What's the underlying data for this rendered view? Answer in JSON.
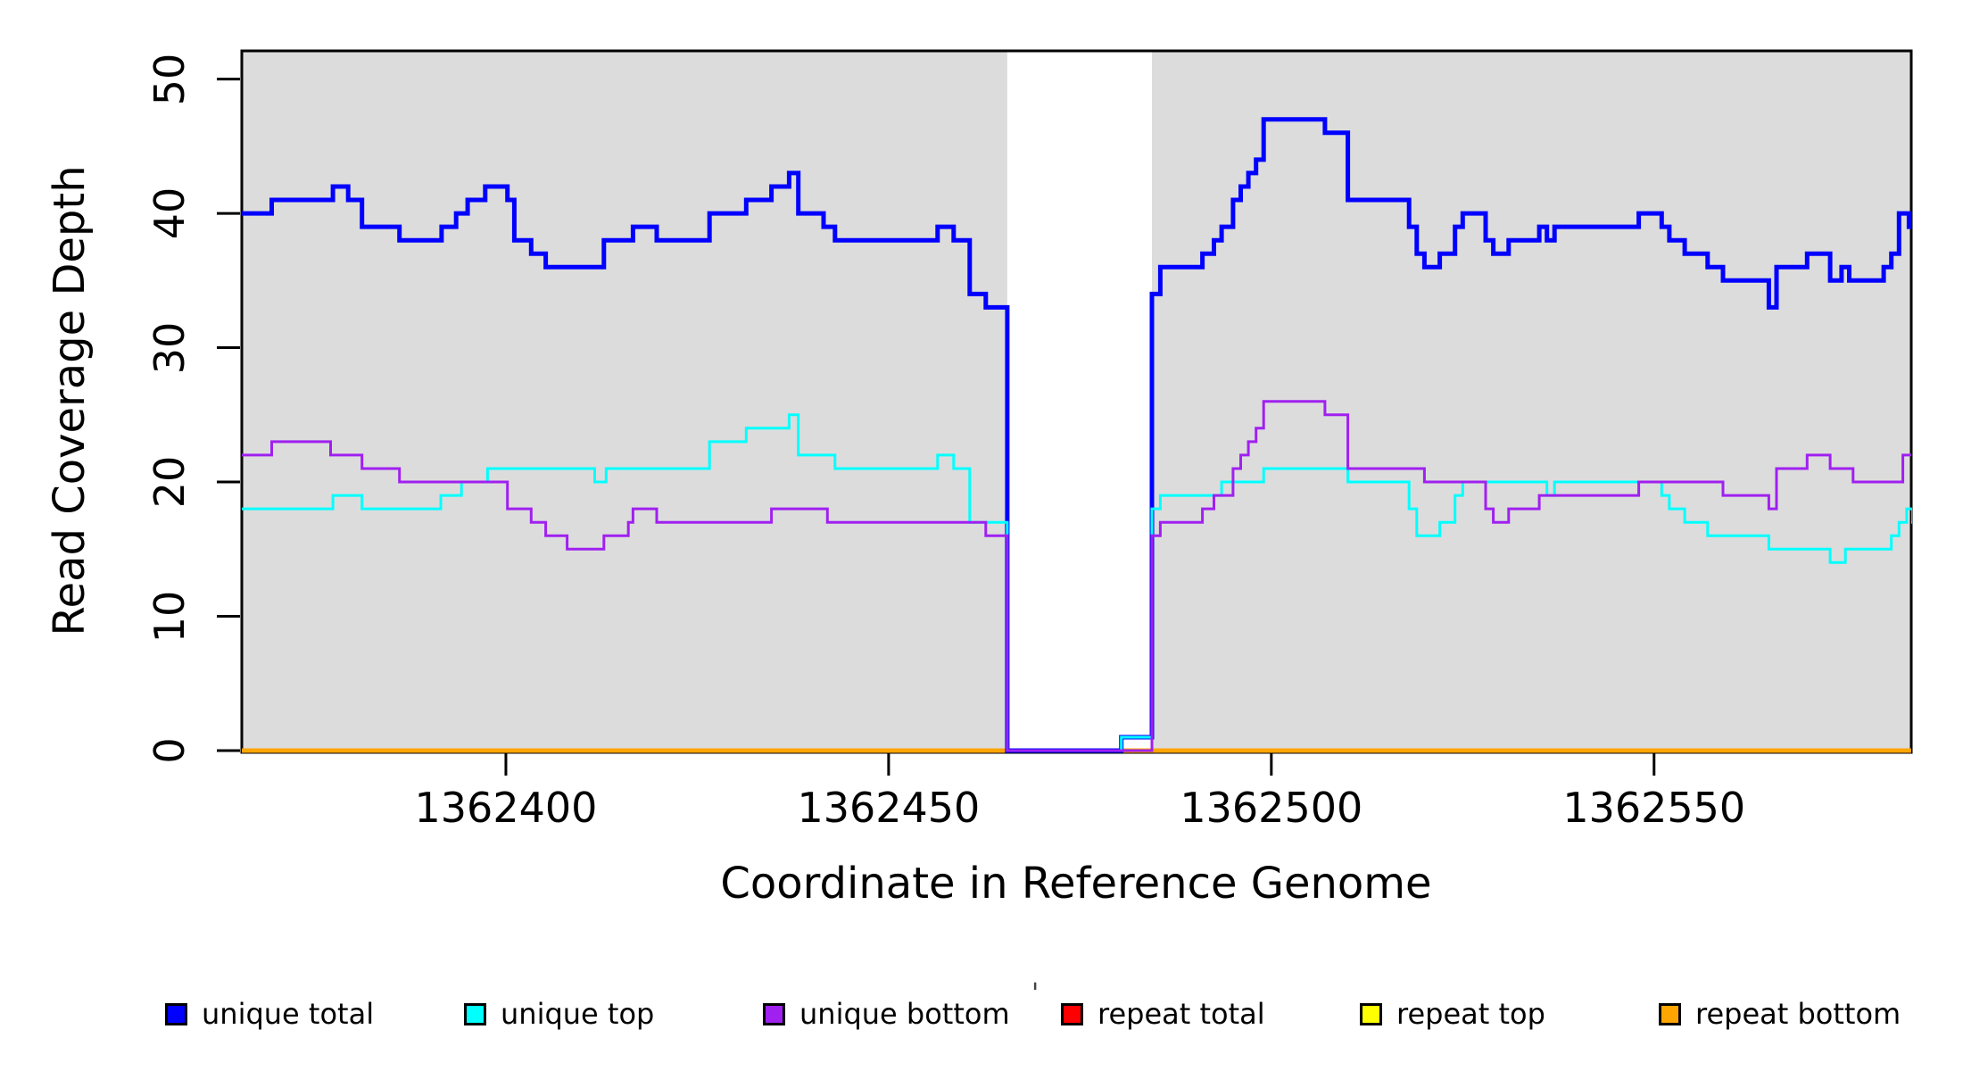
{
  "chart_data": {
    "type": "line",
    "subtype": "step-coverage-plot",
    "title": "",
    "xlabel": "Coordinate in Reference Genome",
    "ylabel": "Read Coverage Depth",
    "xlim": [
      1362365.5,
      1362583.6
    ],
    "ylim": [
      0,
      52.1
    ],
    "x_ticks": [
      1362400,
      1362450,
      1362500,
      1362550
    ],
    "x_tick_labels": [
      "1362400",
      "1362450",
      "1362500",
      "1362550"
    ],
    "y_ticks": [
      0,
      10,
      20,
      30,
      40,
      50
    ],
    "y_tick_labels": [
      "0",
      "10",
      "20",
      "30",
      "40",
      "50"
    ],
    "grid": false,
    "plot_background": "#ffffff",
    "shaded_regions": [
      {
        "x0": 1362365.5,
        "x1": 1362465.5,
        "color": "#dcdcdc"
      },
      {
        "x0": 1362484.4,
        "x1": 1362583.6,
        "color": "#dcdcdc"
      }
    ],
    "gap_region": {
      "x0": 1362465.5,
      "x1": 1362484.4,
      "note": "white band where coverage drops to 0"
    },
    "legend_position": "bottom",
    "legend": [
      {
        "label": "unique total",
        "color": "#0000ff"
      },
      {
        "label": "unique top",
        "color": "#00ffff"
      },
      {
        "label": "unique bottom",
        "color": "#a020f0"
      },
      {
        "label": "repeat total",
        "color": "#ff0000"
      },
      {
        "label": "repeat top",
        "color": "#ffff00"
      },
      {
        "label": "repeat bottom",
        "color": "#ffa500"
      }
    ],
    "series": [
      {
        "name": "repeat total",
        "color": "#ff0000",
        "width": 5,
        "points": [
          [
            1362366,
            0
          ]
        ]
      },
      {
        "name": "repeat top",
        "color": "#ffff00",
        "width": 5,
        "points": [
          [
            1362366,
            0
          ]
        ]
      },
      {
        "name": "repeat bottom",
        "color": "#ffa500",
        "width": 5,
        "points": [
          [
            1362366,
            0
          ]
        ]
      },
      {
        "name": "unique total",
        "color": "#0000ff",
        "width": 5,
        "points": [
          [
            1362366,
            40
          ],
          [
            1362369.4,
            41
          ],
          [
            1362377.4,
            42
          ],
          [
            1362379.4,
            41
          ],
          [
            1362381.2,
            39
          ],
          [
            1362386.1,
            38
          ],
          [
            1362391.6,
            39
          ],
          [
            1362393.5,
            40
          ],
          [
            1362395,
            41
          ],
          [
            1362397.3,
            42
          ],
          [
            1362400.2,
            41
          ],
          [
            1362401.1,
            38
          ],
          [
            1362403.3,
            37
          ],
          [
            1362405.2,
            36
          ],
          [
            1362412.8,
            38
          ],
          [
            1362416.6,
            39
          ],
          [
            1362419.7,
            38
          ],
          [
            1362426.6,
            40
          ],
          [
            1362431.4,
            41
          ],
          [
            1362434.7,
            42
          ],
          [
            1362437,
            43
          ],
          [
            1362438.2,
            40
          ],
          [
            1362441.5,
            39
          ],
          [
            1362443,
            38
          ],
          [
            1362456.4,
            39
          ],
          [
            1362458.5,
            38
          ],
          [
            1362460.6,
            34
          ],
          [
            1362462.7,
            33
          ],
          [
            1362465.5,
            0
          ],
          [
            1362480.4,
            1
          ],
          [
            1362484.4,
            34
          ],
          [
            1362485.5,
            36
          ],
          [
            1362491,
            37
          ],
          [
            1362492.5,
            38
          ],
          [
            1362493.5,
            39
          ],
          [
            1362495,
            41
          ],
          [
            1362496,
            42
          ],
          [
            1362497,
            43
          ],
          [
            1362498,
            44
          ],
          [
            1362499,
            47
          ],
          [
            1362507,
            46
          ],
          [
            1362510,
            41
          ],
          [
            1362518,
            39
          ],
          [
            1362519,
            37
          ],
          [
            1362520,
            36
          ],
          [
            1362522,
            37
          ],
          [
            1362524,
            39
          ],
          [
            1362525,
            40
          ],
          [
            1362528,
            38
          ],
          [
            1362529,
            37
          ],
          [
            1362531,
            38
          ],
          [
            1362535,
            39
          ],
          [
            1362536,
            38
          ],
          [
            1362537,
            39
          ],
          [
            1362548,
            40
          ],
          [
            1362551,
            39
          ],
          [
            1362552,
            38
          ],
          [
            1362554,
            37
          ],
          [
            1362557,
            36
          ],
          [
            1362559,
            35
          ],
          [
            1362565,
            33
          ],
          [
            1362566,
            36
          ],
          [
            1362570,
            37
          ],
          [
            1362573,
            35
          ],
          [
            1362574.5,
            36
          ],
          [
            1362575.5,
            35
          ],
          [
            1362580,
            36
          ],
          [
            1362581,
            37
          ],
          [
            1362582,
            40
          ],
          [
            1362583.3,
            39
          ]
        ]
      },
      {
        "name": "unique top",
        "color": "#00ffff",
        "width": 3,
        "points": [
          [
            1362366,
            18
          ],
          [
            1362377.4,
            19
          ],
          [
            1362381.2,
            18
          ],
          [
            1362391.5,
            19
          ],
          [
            1362394.2,
            20
          ],
          [
            1362397.6,
            21
          ],
          [
            1362411.6,
            20
          ],
          [
            1362413.1,
            21
          ],
          [
            1362426.6,
            23
          ],
          [
            1362431.4,
            24
          ],
          [
            1362437,
            25
          ],
          [
            1362438.2,
            22
          ],
          [
            1362443,
            21
          ],
          [
            1362456.4,
            22
          ],
          [
            1362458.5,
            21
          ],
          [
            1362460.6,
            17
          ],
          [
            1362465.5,
            0
          ],
          [
            1362480.4,
            1
          ],
          [
            1362484.4,
            18
          ],
          [
            1362485.5,
            19
          ],
          [
            1362493.5,
            20
          ],
          [
            1362499,
            21
          ],
          [
            1362510,
            20
          ],
          [
            1362518,
            18
          ],
          [
            1362519,
            16
          ],
          [
            1362522,
            17
          ],
          [
            1362524,
            19
          ],
          [
            1362525,
            20
          ],
          [
            1362536,
            19
          ],
          [
            1362537,
            20
          ],
          [
            1362551,
            19
          ],
          [
            1362552,
            18
          ],
          [
            1362554,
            17
          ],
          [
            1362557,
            16
          ],
          [
            1362565,
            15
          ],
          [
            1362573,
            14
          ],
          [
            1362575,
            15
          ],
          [
            1362581,
            16
          ],
          [
            1362582,
            17
          ],
          [
            1362583,
            18
          ],
          [
            1362583.8,
            17
          ]
        ]
      },
      {
        "name": "unique bottom",
        "color": "#a020f0",
        "width": 3,
        "points": [
          [
            1362366,
            22
          ],
          [
            1362369.4,
            23
          ],
          [
            1362377.1,
            22
          ],
          [
            1362381.2,
            21
          ],
          [
            1362386.1,
            20
          ],
          [
            1362400.2,
            18
          ],
          [
            1362403.3,
            17
          ],
          [
            1362405.2,
            16
          ],
          [
            1362408,
            15
          ],
          [
            1362412.8,
            16
          ],
          [
            1362416,
            17
          ],
          [
            1362416.6,
            18
          ],
          [
            1362419.7,
            17
          ],
          [
            1362434.7,
            18
          ],
          [
            1362442,
            17
          ],
          [
            1362462.7,
            16
          ],
          [
            1362465.5,
            0
          ],
          [
            1362484.4,
            16
          ],
          [
            1362485.5,
            17
          ],
          [
            1362491,
            18
          ],
          [
            1362492.5,
            19
          ],
          [
            1362495,
            21
          ],
          [
            1362496,
            22
          ],
          [
            1362497,
            23
          ],
          [
            1362498,
            24
          ],
          [
            1362499,
            26
          ],
          [
            1362507,
            25
          ],
          [
            1362510,
            21
          ],
          [
            1362520,
            20
          ],
          [
            1362528,
            18
          ],
          [
            1362529,
            17
          ],
          [
            1362531,
            18
          ],
          [
            1362535,
            19
          ],
          [
            1362548,
            20
          ],
          [
            1362559,
            19
          ],
          [
            1362565,
            18
          ],
          [
            1362566,
            21
          ],
          [
            1362570,
            22
          ],
          [
            1362573,
            21
          ],
          [
            1362576,
            20
          ],
          [
            1362582.5,
            22
          ]
        ]
      }
    ]
  },
  "artifact": {
    "mark": "'"
  }
}
